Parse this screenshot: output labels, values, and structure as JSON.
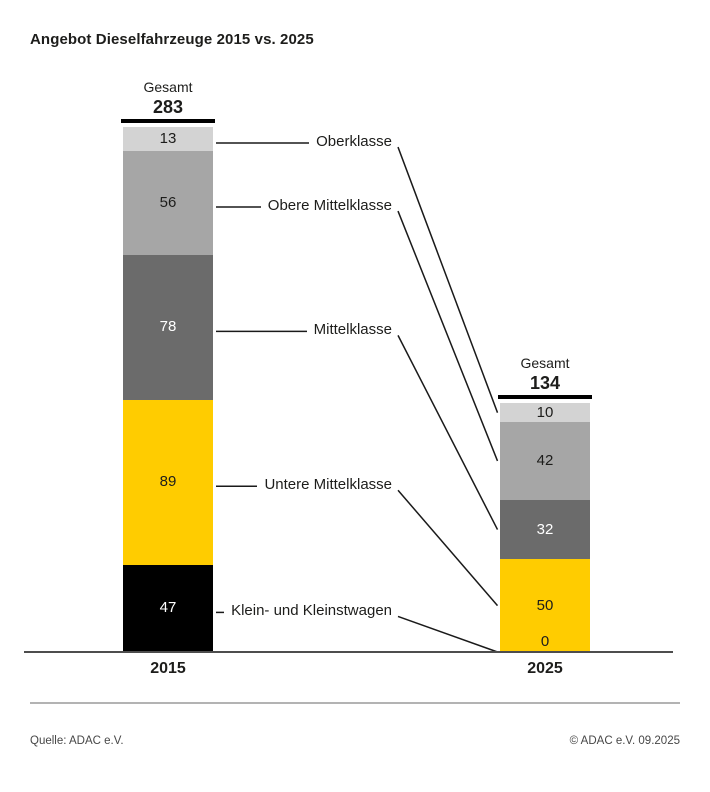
{
  "title": "Angebot Dieselfahrzeuge 2015 vs. 2025",
  "footer": {
    "source": "Quelle: ADAC e.V.",
    "copyright": "© ADAC e.V. 09.2025"
  },
  "chart_data": {
    "type": "bar",
    "subtype": "stacked-bar-comparison",
    "total_label": "Gesamt",
    "categories": [
      "Oberklasse",
      "Obere Mittelklasse",
      "Mittelklasse",
      "Untere Mittelklasse",
      "Klein- und Kleinstwagen"
    ],
    "segment_colors": [
      "#d3d3d3",
      "#a6a6a6",
      "#6b6b6b",
      "#ffcc00",
      "#000000"
    ],
    "segment_text_colors": [
      "#1d1d1b",
      "#1d1d1b",
      "#ffffff",
      "#1d1d1b",
      "#ffffff"
    ],
    "zero_value_text_color": "#1d1d1b",
    "stack_order": "top-to-bottom",
    "series": [
      {
        "name": "2015",
        "total": 283,
        "values": [
          13,
          56,
          78,
          89,
          47
        ]
      },
      {
        "name": "2025",
        "total": 134,
        "values": [
          10,
          42,
          32,
          50,
          0
        ]
      }
    ],
    "leader_line_color": "#1a1a1a",
    "legend_position": "between-bars-with-leader-lines",
    "grid": false
  }
}
